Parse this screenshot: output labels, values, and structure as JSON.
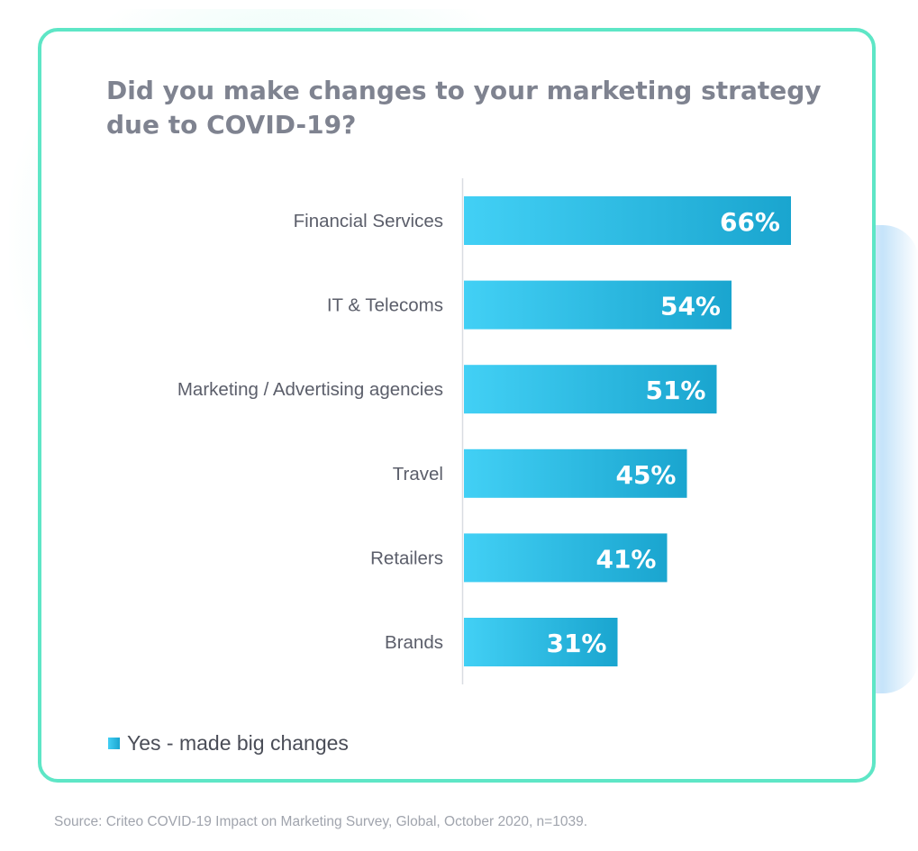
{
  "chart_data": {
    "type": "bar",
    "orientation": "horizontal",
    "title": "Did you make changes to your marketing strategy due to COVID-19?",
    "categories": [
      "Financial Services",
      "IT & Telecoms",
      "Marketing / Advertising agencies",
      "Travel",
      "Retailers",
      "Brands"
    ],
    "series": [
      {
        "name": "Yes - made big changes",
        "values": [
          66,
          54,
          51,
          45,
          41,
          31
        ],
        "color": "#1fa9d2"
      }
    ],
    "data_labels": [
      "66%",
      "54%",
      "51%",
      "45%",
      "41%",
      "31%"
    ],
    "xlim": [
      0,
      100
    ],
    "legend_position": "bottom-left",
    "grid": false
  },
  "source": "Source: Criteo COVID-19 Impact on Marketing Survey, Global, October 2020, n=1039.",
  "colors": {
    "border": "#5ee6c6",
    "bar_start": "#42d0f5",
    "bar_end": "#1aa5cf",
    "title": "#7f8390",
    "category_label": "#5b5e6a"
  }
}
